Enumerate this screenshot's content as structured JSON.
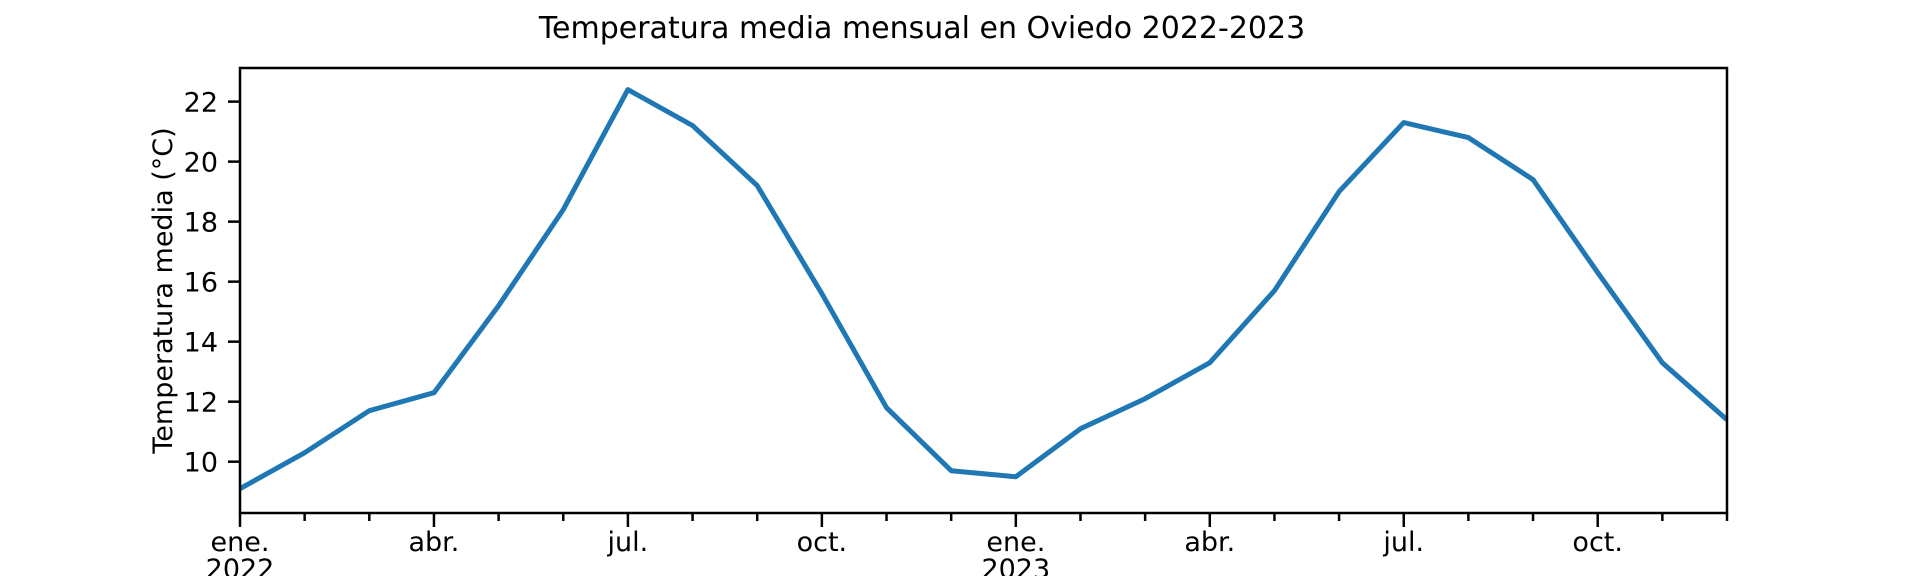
{
  "chart_data": {
    "type": "line",
    "title": "Temperatura media mensual en Oviedo 2022-2023",
    "xlabel": "",
    "ylabel": "Temperatura media (°C)",
    "background": "#ffffff",
    "axis_color": "#000000",
    "grid": false,
    "legend": null,
    "x_count": 24,
    "categories": [
      "ene. 2022",
      "feb. 2022",
      "mar. 2022",
      "abr. 2022",
      "may. 2022",
      "jun. 2022",
      "jul. 2022",
      "ago. 2022",
      "sep. 2022",
      "oct. 2022",
      "nov. 2022",
      "dic. 2022",
      "ene. 2023",
      "feb. 2023",
      "mar. 2023",
      "abr. 2023",
      "may. 2023",
      "jun. 2023",
      "jul. 2023",
      "ago. 2023",
      "sep. 2023",
      "oct. 2023",
      "nov. 2023",
      "dic. 2023"
    ],
    "series": [
      {
        "name": "Temperatura media mensual",
        "color": "#1f77b4",
        "values": [
          9.1,
          10.3,
          11.7,
          12.3,
          15.2,
          18.4,
          22.4,
          21.2,
          19.2,
          15.6,
          11.8,
          9.7,
          9.5,
          11.1,
          12.1,
          13.3,
          15.7,
          19.0,
          21.3,
          20.8,
          19.4,
          16.3,
          13.3,
          11.4
        ]
      }
    ],
    "x_major_ticks": [
      {
        "index": 0,
        "line1": "ene.",
        "line2": "2022"
      },
      {
        "index": 3,
        "line1": "abr.",
        "line2": ""
      },
      {
        "index": 6,
        "line1": "jul.",
        "line2": ""
      },
      {
        "index": 9,
        "line1": "oct.",
        "line2": ""
      },
      {
        "index": 12,
        "line1": "ene.",
        "line2": "2023"
      },
      {
        "index": 15,
        "line1": "abr.",
        "line2": ""
      },
      {
        "index": 18,
        "line1": "jul.",
        "line2": ""
      },
      {
        "index": 21,
        "line1": "oct.",
        "line2": ""
      }
    ],
    "y_ticks": [
      10,
      12,
      14,
      16,
      18,
      20,
      22
    ],
    "ylim": [
      8.29,
      23.12
    ]
  }
}
